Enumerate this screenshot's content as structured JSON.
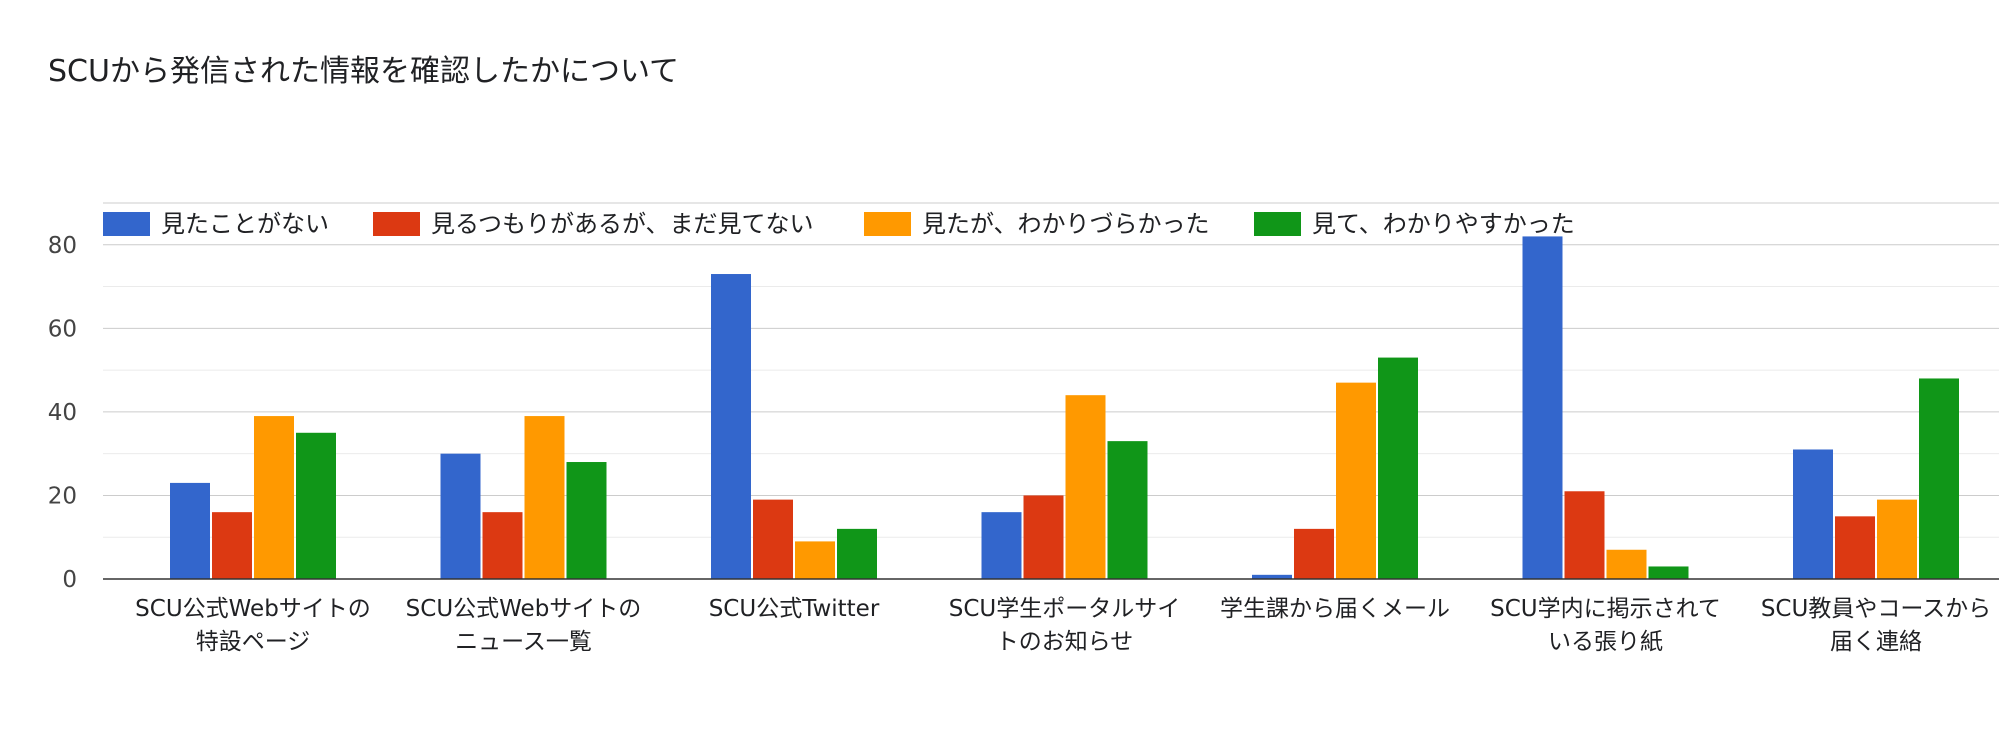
{
  "chart_data": {
    "type": "bar",
    "title": "SCUから発信された情報を確認したかについて",
    "categories": [
      [
        "SCU公式Webサイトの",
        "特設ページ"
      ],
      [
        "SCU公式Webサイトの",
        "ニュース一覧"
      ],
      [
        "SCU公式Twitter"
      ],
      [
        "SCU学生ポータルサイ",
        "トのお知らせ"
      ],
      [
        "学生課から届くメール"
      ],
      [
        "SCU学内に掲示されて",
        "いる張り紙"
      ],
      [
        "SCU教員やコースから",
        "届く連絡"
      ]
    ],
    "series": [
      {
        "name": "見たことがない",
        "color": "#3366cc",
        "values": [
          23,
          30,
          73,
          16,
          1,
          82,
          31
        ]
      },
      {
        "name": "見るつもりがあるが、まだ見てない",
        "color": "#dc3912",
        "values": [
          16,
          16,
          19,
          20,
          12,
          21,
          15
        ]
      },
      {
        "name": "見たが、わかりづらかった",
        "color": "#ff9900",
        "values": [
          39,
          39,
          9,
          44,
          47,
          7,
          19
        ]
      },
      {
        "name": "見て、わかりやすかった",
        "color": "#109618",
        "values": [
          35,
          28,
          12,
          33,
          53,
          3,
          48
        ]
      }
    ],
    "yticks": [
      0,
      20,
      40,
      60,
      80
    ],
    "ylim": [
      0,
      90
    ],
    "grid": true,
    "legend_position": "top-left"
  }
}
